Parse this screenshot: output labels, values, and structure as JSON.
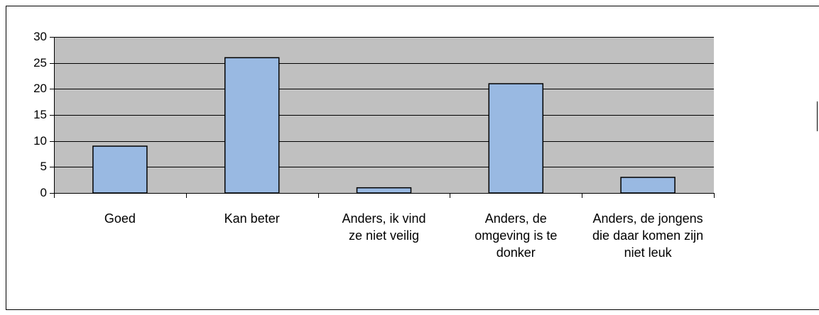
{
  "chart_data": {
    "type": "bar",
    "categories": [
      "Goed",
      "Kan beter",
      "Anders, ik vind ze niet veilig",
      "Anders, de omgeving is te donker",
      "Anders, de jongens die daar komen zijn niet leuk"
    ],
    "values": [
      9,
      26,
      1,
      21,
      3
    ],
    "color": "#99b9e2",
    "ylim": [
      0,
      30
    ],
    "yticks": [
      0,
      5,
      10,
      15,
      20,
      25,
      30
    ],
    "grid": true
  }
}
